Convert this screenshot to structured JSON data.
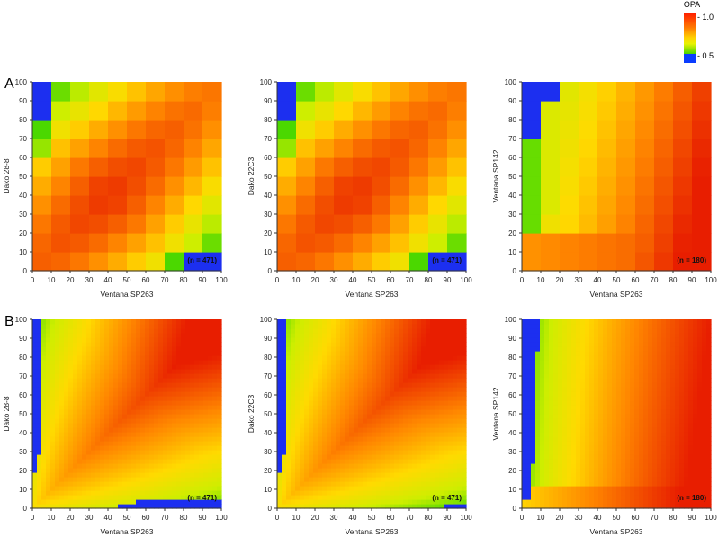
{
  "colorbar": {
    "title": "OPA",
    "labels": [
      "- 1.0",
      "- 0.5"
    ],
    "stops": [
      "#ff1a00",
      "#ff7a00",
      "#ffd200",
      "#e8f200",
      "#49d400",
      "#0a3cff"
    ]
  },
  "colors": {
    "blue": "#1c2ff0",
    "green": "#1dd100",
    "yellow": "#f5e800",
    "orange": "#ff9a00",
    "red": "#ee2a00"
  },
  "rows": [
    "A",
    "B"
  ],
  "chart_data": [
    {
      "type": "heatmap",
      "row": "A",
      "xlabel": "Ventana SP263",
      "ylabel": "Dako 28-8",
      "n_label": "(n = 471)",
      "style": "binned",
      "xlim": [
        0,
        100
      ],
      "ylim": [
        0,
        100
      ],
      "ticks": [
        0,
        10,
        20,
        30,
        40,
        50,
        60,
        70,
        80,
        90,
        100
      ]
    },
    {
      "type": "heatmap",
      "row": "A",
      "xlabel": "Ventana SP263",
      "ylabel": "Dako 22C3",
      "n_label": "(n = 471)",
      "style": "binned",
      "xlim": [
        0,
        100
      ],
      "ylim": [
        0,
        100
      ],
      "ticks": [
        0,
        10,
        20,
        30,
        40,
        50,
        60,
        70,
        80,
        90,
        100
      ]
    },
    {
      "type": "heatmap",
      "row": "A",
      "xlabel": "Ventana SP263",
      "ylabel": "Ventana SP142",
      "n_label": "(n = 180)",
      "style": "binned",
      "xlim": [
        0,
        100
      ],
      "ylim": [
        0,
        100
      ],
      "ticks": [
        0,
        10,
        20,
        30,
        40,
        50,
        60,
        70,
        80,
        90,
        100
      ]
    },
    {
      "type": "heatmap",
      "row": "B",
      "xlabel": "Ventana SP263",
      "ylabel": "Dako 28-8",
      "n_label": "(n = 471)",
      "style": "smooth",
      "xlim": [
        0,
        100
      ],
      "ylim": [
        0,
        100
      ],
      "ticks": [
        0,
        10,
        20,
        30,
        40,
        50,
        60,
        70,
        80,
        90,
        100
      ]
    },
    {
      "type": "heatmap",
      "row": "B",
      "xlabel": "Ventana SP263",
      "ylabel": "Dako 22C3",
      "n_label": "(n = 471)",
      "style": "smooth",
      "xlim": [
        0,
        100
      ],
      "ylim": [
        0,
        100
      ],
      "ticks": [
        0,
        10,
        20,
        30,
        40,
        50,
        60,
        70,
        80,
        90,
        100
      ]
    },
    {
      "type": "heatmap",
      "row": "B",
      "xlabel": "Ventana SP263",
      "ylabel": "Ventana SP142",
      "n_label": "(n = 180)",
      "style": "smooth",
      "xlim": [
        0,
        100
      ],
      "ylim": [
        0,
        100
      ],
      "ticks": [
        0,
        10,
        20,
        30,
        40,
        50,
        60,
        70,
        80,
        90,
        100
      ]
    }
  ]
}
